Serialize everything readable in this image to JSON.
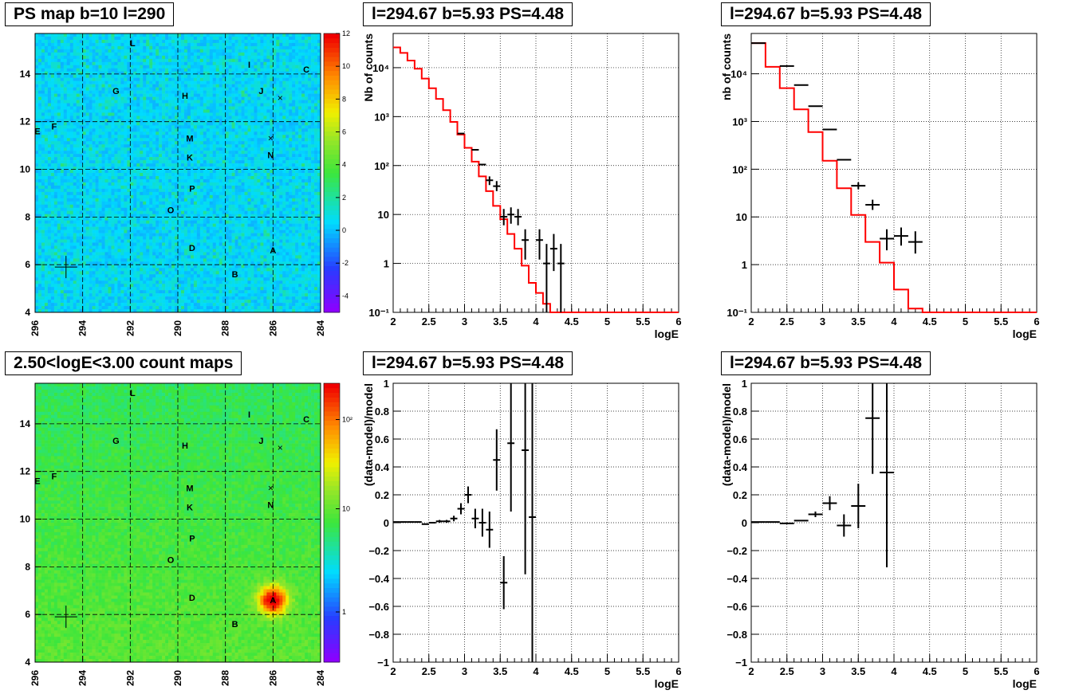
{
  "colors": {
    "histogram": "#ff0000",
    "data": "#000000",
    "grid": "#000000"
  },
  "chart_data": [
    {
      "panel": "ps-map",
      "type": "heatmap",
      "title": "PS map b=10 l=290",
      "xlim": [
        296,
        284
      ],
      "ylim": [
        4,
        15.7
      ],
      "x_ticks": [
        "296",
        "294",
        "292",
        "290",
        "288",
        "286",
        "284"
      ],
      "y_ticks": [
        "4",
        "6",
        "8",
        "10",
        "12",
        "14"
      ],
      "colorbar": {
        "min": -5,
        "max": 12,
        "ticks": [
          "-4",
          "-2",
          "0",
          "2",
          "4",
          "6",
          "8",
          "10",
          "12"
        ]
      },
      "grid": true,
      "sources": [
        {
          "label": "L",
          "l": 291.9,
          "b": 15.3
        },
        {
          "label": "I",
          "l": 287.0,
          "b": 14.4
        },
        {
          "label": "C",
          "l": 284.6,
          "b": 14.2
        },
        {
          "label": "G",
          "l": 292.6,
          "b": 13.3
        },
        {
          "label": "H",
          "l": 289.7,
          "b": 13.1
        },
        {
          "label": "J",
          "l": 286.5,
          "b": 13.3
        },
        {
          "label": "E",
          "l": 295.9,
          "b": 11.6
        },
        {
          "label": "F",
          "l": 295.2,
          "b": 11.8
        },
        {
          "label": "M",
          "l": 289.5,
          "b": 11.3
        },
        {
          "label": "K",
          "l": 289.5,
          "b": 10.5
        },
        {
          "label": "N",
          "l": 286.1,
          "b": 10.6
        },
        {
          "label": "P",
          "l": 289.4,
          "b": 9.2
        },
        {
          "label": "O",
          "l": 290.3,
          "b": 8.3
        },
        {
          "label": "D",
          "l": 289.4,
          "b": 6.7
        },
        {
          "label": "A",
          "l": 286.0,
          "b": 6.6
        },
        {
          "label": "B",
          "l": 287.6,
          "b": 5.6
        }
      ],
      "markers": [
        {
          "symbol": "x",
          "l": 285.7,
          "b": 13.0
        },
        {
          "symbol": "x",
          "l": 286.1,
          "b": 11.3
        },
        {
          "symbol": "+",
          "l": 294.7,
          "b": 5.9
        }
      ]
    },
    {
      "panel": "counts-tot",
      "type": "line",
      "title": "l=294.67 b=5.93 PS=4.48",
      "xlabel": "logE",
      "ylabel": "Nb of counts",
      "xlim": [
        2,
        6
      ],
      "ylog": true,
      "ylim": [
        0.1,
        50000
      ],
      "x_ticks": [
        "2",
        "2.5",
        "3",
        "3.5",
        "4",
        "4.5",
        "5",
        "5.5",
        "6"
      ],
      "y_ticks": [
        {
          "v": 0.1,
          "t": "10⁻¹"
        },
        {
          "v": 1,
          "t": "1"
        },
        {
          "v": 10,
          "t": "10"
        },
        {
          "v": 100,
          "t": "10²"
        },
        {
          "v": 1000,
          "t": "10³"
        },
        {
          "v": 10000,
          "t": "10⁴"
        }
      ],
      "model": {
        "edges": [
          2,
          2.1,
          2.2,
          2.3,
          2.4,
          2.5,
          2.6,
          2.7,
          2.8,
          2.9,
          3.0,
          3.1,
          3.2,
          3.3,
          3.4,
          3.5,
          3.6,
          3.7,
          3.8,
          3.9,
          4.0,
          4.1,
          4.2,
          4.3,
          4.4,
          4.5,
          6.0
        ],
        "values": [
          26000,
          20000,
          14000,
          9500,
          6000,
          3800,
          2300,
          1350,
          780,
          430,
          230,
          120,
          60,
          30,
          15,
          8,
          4,
          2,
          0.9,
          0.4,
          0.25,
          0.15,
          0.1,
          0.05,
          0.05,
          0.05
        ]
      },
      "points": [
        {
          "x": 2.95,
          "y": 450
        },
        {
          "x": 3.15,
          "y": 210
        },
        {
          "x": 3.25,
          "y": 105
        },
        {
          "x": 3.35,
          "y": 50,
          "lo": 40,
          "hi": 60
        },
        {
          "x": 3.45,
          "y": 38,
          "lo": 30,
          "hi": 48
        },
        {
          "x": 3.55,
          "y": 9,
          "lo": 6,
          "hi": 13
        },
        {
          "x": 3.65,
          "y": 10,
          "lo": 6.5,
          "hi": 14
        },
        {
          "x": 3.75,
          "y": 9,
          "lo": 6,
          "hi": 13
        },
        {
          "x": 3.85,
          "y": 3,
          "lo": 1.2,
          "hi": 5
        },
        {
          "x": 4.05,
          "y": 3,
          "lo": 1.2,
          "hi": 5
        },
        {
          "x": 4.15,
          "y": 1,
          "lo": 0.1,
          "hi": 2.5
        },
        {
          "x": 4.25,
          "y": 2,
          "lo": 0.7,
          "hi": 4
        },
        {
          "x": 4.35,
          "y": 1,
          "lo": 0.1,
          "hi": 2.5
        }
      ]
    },
    {
      "panel": "counts-src",
      "type": "line",
      "title": "l=294.67 b=5.93 PS=4.48",
      "xlabel": "logE",
      "ylabel": "nb of counts",
      "xlim": [
        2,
        6
      ],
      "ylog": true,
      "ylim": [
        0.1,
        70000
      ],
      "x_ticks": [
        "2",
        "2.5",
        "3",
        "3.5",
        "4",
        "4.5",
        "5",
        "5.5",
        "6"
      ],
      "y_ticks": [
        {
          "v": 0.1,
          "t": "10⁻¹"
        },
        {
          "v": 1,
          "t": "1"
        },
        {
          "v": 10,
          "t": "10"
        },
        {
          "v": 100,
          "t": "10²"
        },
        {
          "v": 1000,
          "t": "10³"
        },
        {
          "v": 10000,
          "t": "10⁴"
        }
      ],
      "model": {
        "edges": [
          2,
          2.2,
          2.4,
          2.6,
          2.8,
          3.0,
          3.2,
          3.4,
          3.6,
          3.8,
          4.0,
          4.2,
          4.4,
          4.6,
          6.0
        ],
        "values": [
          44000,
          14000,
          5000,
          1800,
          600,
          150,
          40,
          11,
          3,
          1.1,
          0.3,
          0.12,
          0.1,
          0.1
        ]
      },
      "points": [
        {
          "x": 2.1,
          "y": 44000
        },
        {
          "x": 2.5,
          "y": 14500
        },
        {
          "x": 2.7,
          "y": 5800
        },
        {
          "x": 2.9,
          "y": 2100
        },
        {
          "x": 3.1,
          "y": 680
        },
        {
          "x": 3.3,
          "y": 158
        },
        {
          "x": 3.5,
          "y": 45,
          "lo": 38,
          "hi": 53
        },
        {
          "x": 3.7,
          "y": 18,
          "lo": 14,
          "hi": 23
        },
        {
          "x": 3.9,
          "y": 3.5,
          "lo": 2,
          "hi": 5.5
        },
        {
          "x": 4.1,
          "y": 4,
          "lo": 2.5,
          "hi": 6
        },
        {
          "x": 4.3,
          "y": 3,
          "lo": 1.7,
          "hi": 5
        }
      ]
    },
    {
      "panel": "count-map",
      "type": "heatmap",
      "title": "2.50<logE<3.00 count maps",
      "xlim": [
        296,
        284
      ],
      "ylim": [
        4,
        15.7
      ],
      "x_ticks": [
        "296",
        "294",
        "292",
        "290",
        "288",
        "286",
        "284"
      ],
      "y_ticks": [
        "4",
        "6",
        "8",
        "10",
        "12",
        "14"
      ],
      "colorbar": {
        "log": true,
        "ticks": [
          "1",
          "10",
          "10²"
        ]
      },
      "grid": true,
      "hotspot": {
        "l": 286.0,
        "b": 6.6
      },
      "sources": [
        {
          "label": "L",
          "l": 291.9,
          "b": 15.3
        },
        {
          "label": "I",
          "l": 287.0,
          "b": 14.4
        },
        {
          "label": "C",
          "l": 284.6,
          "b": 14.2
        },
        {
          "label": "G",
          "l": 292.6,
          "b": 13.3
        },
        {
          "label": "H",
          "l": 289.7,
          "b": 13.1
        },
        {
          "label": "J",
          "l": 286.5,
          "b": 13.3
        },
        {
          "label": "E",
          "l": 295.9,
          "b": 11.6
        },
        {
          "label": "F",
          "l": 295.2,
          "b": 11.8
        },
        {
          "label": "M",
          "l": 289.5,
          "b": 11.3
        },
        {
          "label": "K",
          "l": 289.5,
          "b": 10.5
        },
        {
          "label": "N",
          "l": 286.1,
          "b": 10.6
        },
        {
          "label": "P",
          "l": 289.4,
          "b": 9.2
        },
        {
          "label": "O",
          "l": 290.3,
          "b": 8.3
        },
        {
          "label": "D",
          "l": 289.4,
          "b": 6.7
        },
        {
          "label": "A",
          "l": 286.0,
          "b": 6.6
        },
        {
          "label": "B",
          "l": 287.6,
          "b": 5.6
        }
      ],
      "markers": [
        {
          "symbol": "x",
          "l": 285.7,
          "b": 13.0
        },
        {
          "symbol": "x",
          "l": 286.1,
          "b": 11.3
        },
        {
          "symbol": "+",
          "l": 294.7,
          "b": 5.9
        }
      ]
    },
    {
      "panel": "resid-tot",
      "type": "scatter",
      "title": "l=294.67 b=5.93 PS=4.48",
      "xlabel": "logE",
      "ylabel": "(data-model)/model",
      "xlim": [
        2,
        6
      ],
      "ylim": [
        -1,
        1
      ],
      "x_ticks": [
        "2",
        "2.5",
        "3",
        "3.5",
        "4",
        "4.5",
        "5",
        "5.5",
        "6"
      ],
      "y_ticks": [
        {
          "v": -1,
          "t": "−1"
        },
        {
          "v": -0.8,
          "t": "−0.8"
        },
        {
          "v": -0.6,
          "t": "−0.6"
        },
        {
          "v": -0.4,
          "t": "−0.4"
        },
        {
          "v": -0.2,
          "t": "−0.2"
        },
        {
          "v": 0,
          "t": "0"
        },
        {
          "v": 0.2,
          "t": "0.2"
        },
        {
          "v": 0.4,
          "t": "0.4"
        },
        {
          "v": 0.6,
          "t": "0.6"
        },
        {
          "v": 0.8,
          "t": "0.8"
        },
        {
          "v": 1,
          "t": "1"
        }
      ],
      "points": [
        {
          "x": 2.05,
          "y": 0.005
        },
        {
          "x": 2.15,
          "y": 0.005
        },
        {
          "x": 2.25,
          "y": 0.005
        },
        {
          "x": 2.35,
          "y": 0.005
        },
        {
          "x": 2.45,
          "y": -0.01
        },
        {
          "x": 2.55,
          "y": 0.0
        },
        {
          "x": 2.65,
          "y": 0.01,
          "lo": 0.0,
          "hi": 0.02
        },
        {
          "x": 2.75,
          "y": 0.01,
          "lo": 0.0,
          "hi": 0.02
        },
        {
          "x": 2.85,
          "y": 0.03,
          "lo": 0.01,
          "hi": 0.05
        },
        {
          "x": 2.95,
          "y": 0.1,
          "lo": 0.06,
          "hi": 0.14
        },
        {
          "x": 3.05,
          "y": 0.2,
          "lo": 0.14,
          "hi": 0.26
        },
        {
          "x": 3.15,
          "y": 0.03,
          "lo": -0.04,
          "hi": 0.1
        },
        {
          "x": 3.25,
          "y": 0.0,
          "lo": -0.1,
          "hi": 0.1
        },
        {
          "x": 3.35,
          "y": -0.05,
          "lo": -0.18,
          "hi": 0.08
        },
        {
          "x": 3.45,
          "y": 0.45,
          "lo": 0.23,
          "hi": 0.67
        },
        {
          "x": 3.55,
          "y": -0.43,
          "lo": -0.62,
          "hi": -0.24
        },
        {
          "x": 3.65,
          "y": 0.57,
          "lo": 0.08,
          "hi": 1.0
        },
        {
          "x": 3.85,
          "y": 0.52,
          "lo": -0.37,
          "hi": 1.0
        },
        {
          "x": 3.95,
          "y": 0.04,
          "lo": -1.0,
          "hi": 1.0
        }
      ]
    },
    {
      "panel": "resid-src",
      "type": "scatter",
      "title": "l=294.67 b=5.93 PS=4.48",
      "xlabel": "logE",
      "ylabel": "(data-model)/model",
      "xlim": [
        2,
        6
      ],
      "ylim": [
        -1,
        1
      ],
      "x_ticks": [
        "2",
        "2.5",
        "3",
        "3.5",
        "4",
        "4.5",
        "5",
        "5.5",
        "6"
      ],
      "y_ticks": [
        {
          "v": -1,
          "t": "−1"
        },
        {
          "v": -0.8,
          "t": "−0.8"
        },
        {
          "v": -0.6,
          "t": "−0.6"
        },
        {
          "v": -0.4,
          "t": "−0.4"
        },
        {
          "v": -0.2,
          "t": "−0.2"
        },
        {
          "v": 0,
          "t": "0"
        },
        {
          "v": 0.2,
          "t": "0.2"
        },
        {
          "v": 0.4,
          "t": "0.4"
        },
        {
          "v": 0.6,
          "t": "0.6"
        },
        {
          "v": 0.8,
          "t": "0.8"
        },
        {
          "v": 1,
          "t": "1"
        }
      ],
      "points": [
        {
          "x": 2.1,
          "y": 0.005
        },
        {
          "x": 2.3,
          "y": 0.005
        },
        {
          "x": 2.5,
          "y": -0.005
        },
        {
          "x": 2.7,
          "y": 0.015
        },
        {
          "x": 2.9,
          "y": 0.06,
          "lo": 0.04,
          "hi": 0.08
        },
        {
          "x": 3.1,
          "y": 0.14,
          "lo": 0.09,
          "hi": 0.19
        },
        {
          "x": 3.3,
          "y": -0.02,
          "lo": -0.1,
          "hi": 0.06
        },
        {
          "x": 3.5,
          "y": 0.12,
          "lo": -0.04,
          "hi": 0.28
        },
        {
          "x": 3.7,
          "y": 0.75,
          "lo": 0.35,
          "hi": 1.0
        },
        {
          "x": 3.9,
          "y": 0.36,
          "lo": -0.32,
          "hi": 1.0
        }
      ]
    }
  ]
}
